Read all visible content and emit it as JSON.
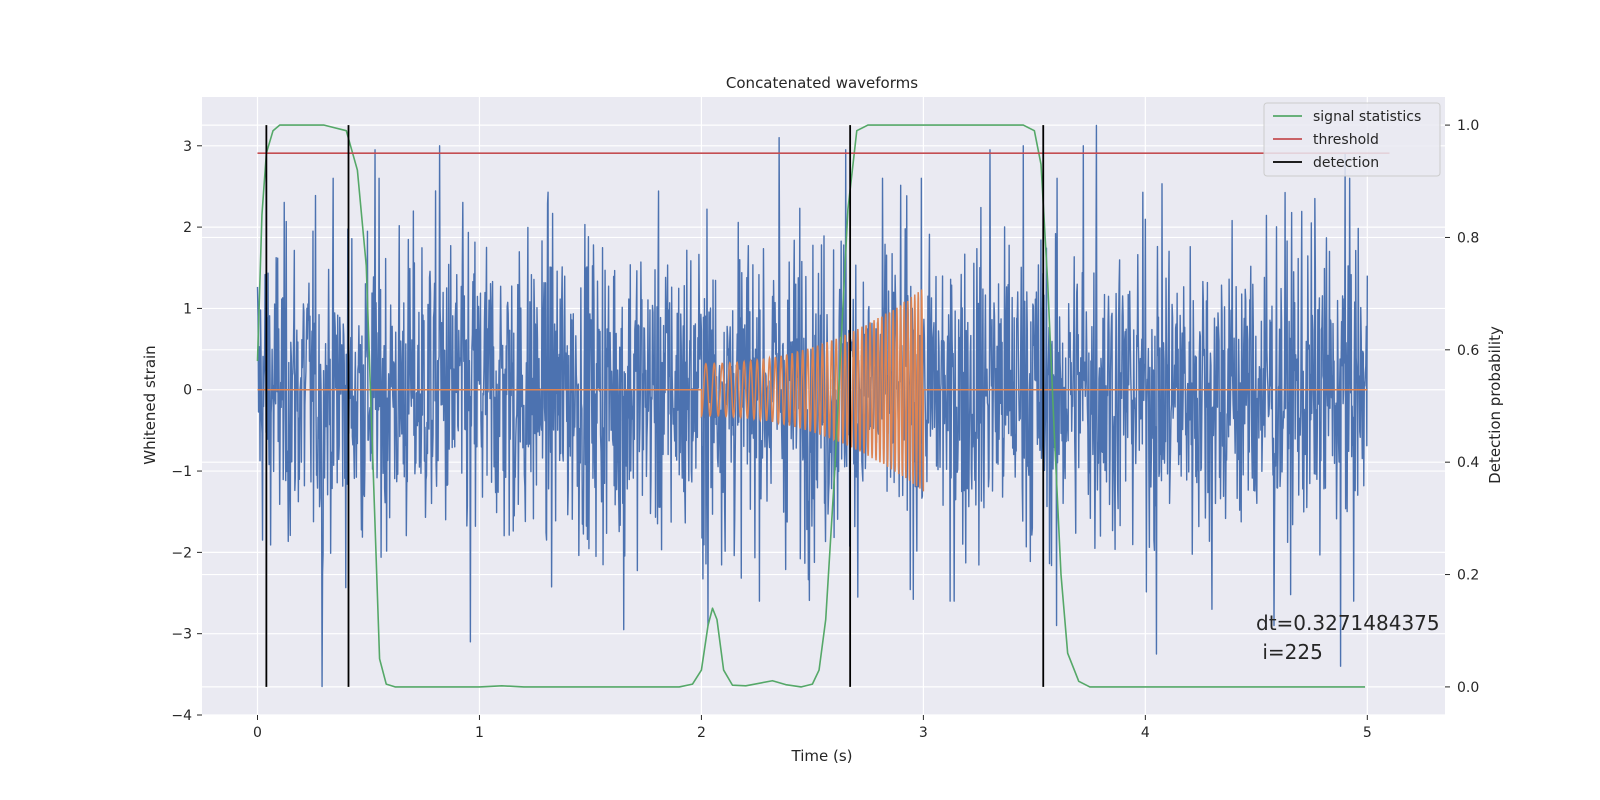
{
  "chart_data": {
    "type": "line",
    "title": "Concatenated waveforms",
    "xlabel": "Time (s)",
    "ylabel": "Whitened strain",
    "y2label": "Detection probability",
    "xlim": [
      -0.25,
      5.35
    ],
    "ylim": [
      -4,
      3.6
    ],
    "y2lim": [
      -0.05,
      1.05
    ],
    "xticks": [
      0,
      1,
      2,
      3,
      4,
      5
    ],
    "yticks": [
      -4,
      -3,
      -2,
      -1,
      0,
      1,
      2,
      3
    ],
    "y2ticks": [
      0.0,
      0.2,
      0.4,
      0.6,
      0.8,
      1.0
    ],
    "xtick_labels": [
      "0",
      "1",
      "2",
      "3",
      "4",
      "5"
    ],
    "ytick_labels": [
      "−4",
      "−3",
      "−2",
      "−1",
      "0",
      "1",
      "2",
      "3"
    ],
    "y2tick_labels": [
      "0.0",
      "0.2",
      "0.4",
      "0.6",
      "0.8",
      "1.0"
    ],
    "grid": true,
    "legend_position": "top-right",
    "colors": {
      "background": "#eaeaf2",
      "strain": "#4c72b0",
      "injection": "#dd8452",
      "signal_statistics": "#55a868",
      "threshold": "#c44e52",
      "detection": "#000000"
    },
    "series": [
      {
        "name": "strain",
        "axis": "left",
        "color": "#4c72b0",
        "description_range": [
          0,
          5
        ],
        "envelope": {
          "typical_min": -2.6,
          "typical_max": 2.6,
          "extreme_min": -3.65,
          "extreme_max": 3.25
        },
        "spikes": [
          [
            0.29,
            -3.65
          ],
          [
            0.82,
            3.0
          ],
          [
            0.53,
            2.95
          ],
          [
            2.35,
            3.1
          ],
          [
            2.65,
            2.95
          ],
          [
            3.45,
            3.0
          ],
          [
            3.78,
            3.25
          ],
          [
            3.72,
            3.0
          ],
          [
            3.3,
            2.95
          ],
          [
            4.9,
            2.9
          ],
          [
            4.88,
            -3.4
          ],
          [
            4.05,
            -3.25
          ],
          [
            0.96,
            -3.1
          ],
          [
            1.65,
            -2.95
          ],
          [
            2.03,
            -2.9
          ],
          [
            3.6,
            -2.9
          ],
          [
            4.58,
            -2.9
          ],
          [
            4.3,
            -2.7
          ],
          [
            3.12,
            -2.6
          ]
        ]
      },
      {
        "name": "injection",
        "axis": "left",
        "color": "#dd8452",
        "chirp": {
          "start": 2.0,
          "end": 3.0,
          "amp_start": 0.32,
          "amp_end": 1.25,
          "cycles": 45
        }
      },
      {
        "name": "signal statistics",
        "axis": "right",
        "color": "#55a868",
        "points": [
          [
            0.0,
            0.58
          ],
          [
            0.02,
            0.84
          ],
          [
            0.04,
            0.95
          ],
          [
            0.07,
            0.99
          ],
          [
            0.1,
            1.0
          ],
          [
            0.3,
            1.0
          ],
          [
            0.4,
            0.99
          ],
          [
            0.45,
            0.92
          ],
          [
            0.49,
            0.75
          ],
          [
            0.52,
            0.4
          ],
          [
            0.55,
            0.05
          ],
          [
            0.58,
            0.005
          ],
          [
            0.62,
            0.0
          ],
          [
            1.0,
            0.0
          ],
          [
            1.1,
            0.002
          ],
          [
            1.2,
            0.0
          ],
          [
            1.9,
            0.0
          ],
          [
            1.96,
            0.005
          ],
          [
            2.0,
            0.03
          ],
          [
            2.03,
            0.11
          ],
          [
            2.05,
            0.14
          ],
          [
            2.07,
            0.12
          ],
          [
            2.1,
            0.03
          ],
          [
            2.14,
            0.003
          ],
          [
            2.2,
            0.002
          ],
          [
            2.32,
            0.011
          ],
          [
            2.38,
            0.004
          ],
          [
            2.45,
            0.0
          ],
          [
            2.5,
            0.005
          ],
          [
            2.53,
            0.03
          ],
          [
            2.56,
            0.12
          ],
          [
            2.6,
            0.38
          ],
          [
            2.63,
            0.62
          ],
          [
            2.66,
            0.85
          ],
          [
            2.7,
            0.99
          ],
          [
            2.75,
            1.0
          ],
          [
            3.45,
            1.0
          ],
          [
            3.5,
            0.99
          ],
          [
            3.53,
            0.93
          ],
          [
            3.56,
            0.72
          ],
          [
            3.59,
            0.45
          ],
          [
            3.62,
            0.2
          ],
          [
            3.65,
            0.06
          ],
          [
            3.7,
            0.01
          ],
          [
            3.75,
            0.0
          ],
          [
            4.99,
            0.0
          ]
        ]
      },
      {
        "name": "threshold",
        "axis": "right",
        "color": "#c44e52",
        "x": [
          0,
          5.1
        ],
        "y": [
          0.95,
          0.95
        ]
      },
      {
        "name": "detection",
        "axis": "right",
        "color": "#000000",
        "vlines": [
          0.04,
          0.41,
          2.67,
          3.54
        ],
        "y_range": [
          0.0,
          1.0
        ]
      }
    ],
    "legend": [
      "signal statistics",
      "threshold",
      "detection"
    ],
    "annotation": {
      "line1": "dt=0.3271484375",
      "line2": " i=225"
    }
  }
}
